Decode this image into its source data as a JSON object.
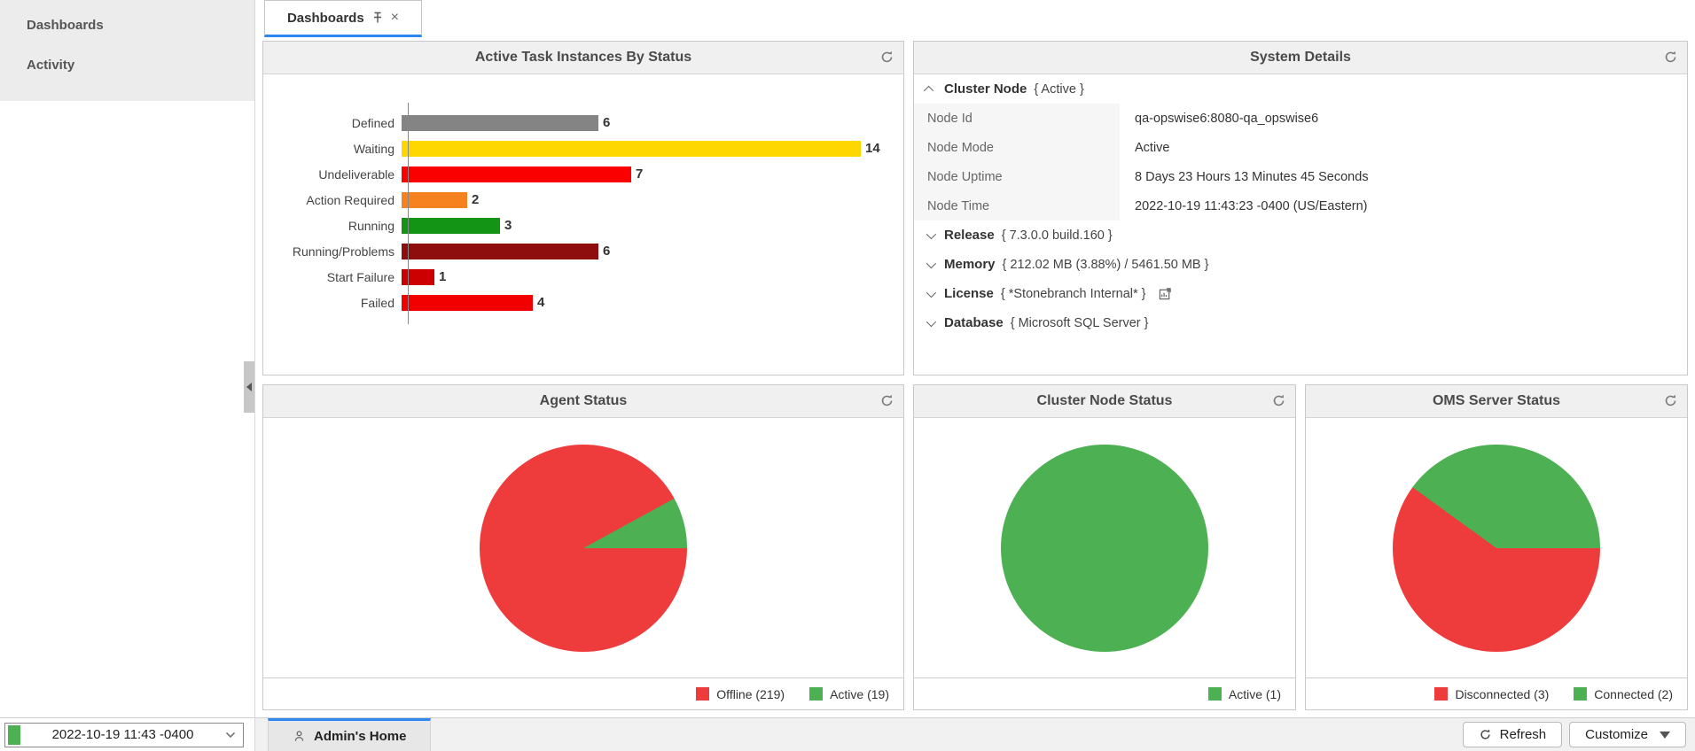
{
  "sidebar": {
    "items": [
      {
        "label": "Dashboards"
      },
      {
        "label": "Activity"
      }
    ]
  },
  "tab_bar": {
    "tabs": [
      {
        "label": "Dashboards",
        "pinned": true
      }
    ]
  },
  "panels": {
    "active_tasks": {
      "title": "Active Task Instances By Status"
    },
    "system_details": {
      "title": "System Details",
      "sections": [
        {
          "name": "Cluster Node",
          "detail": "{ Active }",
          "expanded": true,
          "rows": [
            {
              "key": "Node Id",
              "value": "qa-opswise6:8080-qa_opswise6"
            },
            {
              "key": "Node Mode",
              "value": "Active"
            },
            {
              "key": "Node Uptime",
              "value": "8 Days 23 Hours 13 Minutes 45 Seconds"
            },
            {
              "key": "Node Time",
              "value": "2022-10-19 11:43:23 -0400 (US/Eastern)"
            }
          ]
        },
        {
          "name": "Release",
          "detail": "{ 7.3.0.0 build.160 }",
          "expanded": false,
          "rows": []
        },
        {
          "name": "Memory",
          "detail": "{ 212.02 MB (3.88%) / 5461.50 MB }",
          "expanded": false,
          "rows": []
        },
        {
          "name": "License",
          "detail": "{ *Stonebranch Internal* }",
          "expanded": false,
          "has_report_icon": true,
          "rows": []
        },
        {
          "name": "Database",
          "detail": "{ Microsoft SQL Server }",
          "expanded": false,
          "rows": []
        }
      ]
    },
    "agent_status": {
      "title": "Agent Status"
    },
    "cluster_node_status": {
      "title": "Cluster Node Status"
    },
    "oms_server_status": {
      "title": "OMS Server Status"
    }
  },
  "chart_data": [
    {
      "type": "bar",
      "orientation": "horizontal",
      "title": "Active Task Instances By Status",
      "categories": [
        "Defined",
        "Waiting",
        "Undeliverable",
        "Action Required",
        "Running",
        "Running/Problems",
        "Start Failure",
        "Failed"
      ],
      "values": [
        6,
        14,
        7,
        2,
        3,
        6,
        1,
        4
      ],
      "colors": [
        "#848484",
        "#FFD700",
        "#FB0000",
        "#F5821F",
        "#149414",
        "#8E0E0E",
        "#CC0000",
        "#F20000"
      ],
      "xlim": [
        0,
        14.5
      ],
      "grid": false,
      "data_labels": true
    },
    {
      "type": "pie",
      "title": "Agent Status",
      "slices": [
        {
          "label": "Offline (219)",
          "value": 219,
          "color": "#EE3B3B"
        },
        {
          "label": "Active (19)",
          "value": 19,
          "color": "#4DB052"
        }
      ],
      "legend_position": "bottom-right"
    },
    {
      "type": "pie",
      "title": "Cluster Node Status",
      "slices": [
        {
          "label": "Active (1)",
          "value": 1,
          "color": "#4DB052"
        }
      ],
      "legend_position": "bottom-right"
    },
    {
      "type": "pie",
      "title": "OMS Server Status",
      "slices": [
        {
          "label": "Disconnected (3)",
          "value": 3,
          "color": "#EE3B3B"
        },
        {
          "label": "Connected (2)",
          "value": 2,
          "color": "#4DB052"
        }
      ],
      "legend_position": "bottom-right"
    }
  ],
  "bottom_bar": {
    "timezone_value": "2022-10-19 11:43 -0400",
    "home_tab_label": "Admin's Home",
    "refresh_label": "Refresh",
    "customize_label": "Customize"
  },
  "colors": {
    "accent_blue": "#2e86f0",
    "status_green": "#4DB052",
    "status_red": "#EE3B3B"
  }
}
